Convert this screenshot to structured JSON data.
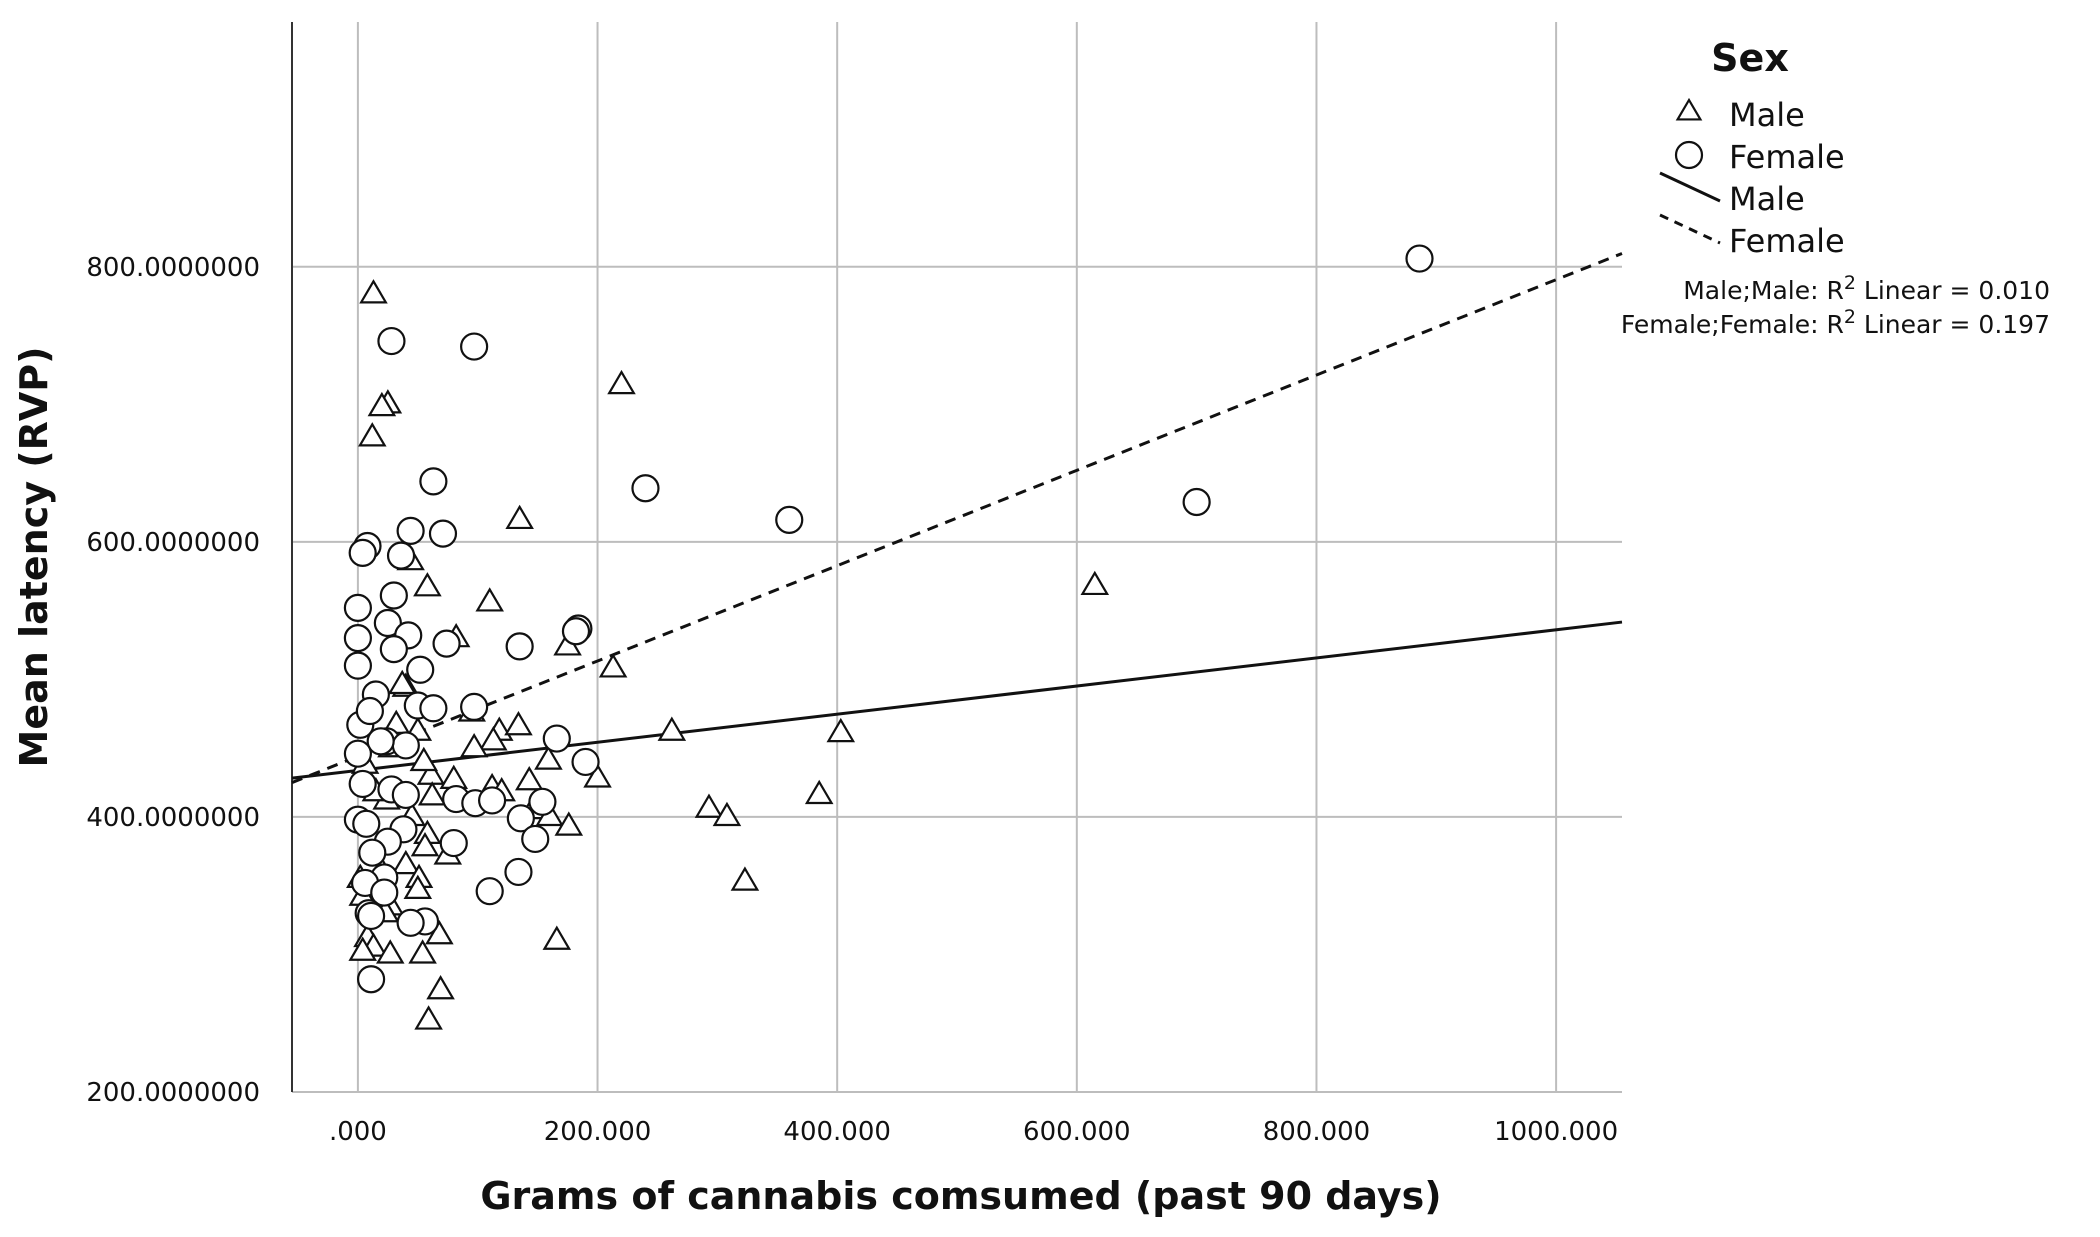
{
  "chart_data": {
    "type": "scatter",
    "title": "",
    "xlabel": "Grams of cannabis comsumed (past 90 days)",
    "ylabel": "Mean latency (RVP)",
    "xlim": [
      -55,
      1055
    ],
    "ylim": [
      200,
      978
    ],
    "x_ticks": [
      0,
      200,
      400,
      600,
      800,
      1000
    ],
    "x_tick_labels": [
      ".000",
      "200.000",
      "400.000",
      "600.000",
      "800.000",
      "1000.000"
    ],
    "y_ticks": [
      200,
      400,
      600,
      800
    ],
    "y_tick_labels": [
      "200.0000000",
      "400.0000000",
      "600.0000000",
      "800.0000000"
    ],
    "grid": true,
    "legend": {
      "title": "Sex",
      "position": "right",
      "entries": [
        {
          "label": "Male",
          "kind": "marker",
          "symbol": "triangle"
        },
        {
          "label": "Female",
          "kind": "marker",
          "symbol": "circle"
        },
        {
          "label": "Male",
          "kind": "line",
          "style": "solid"
        },
        {
          "label": "Female",
          "kind": "line",
          "style": "dashed"
        }
      ]
    },
    "r2_annotations": [
      {
        "prefix": "Male;Male: R",
        "sup": "2",
        "suffix": " Linear = 0.010"
      },
      {
        "prefix": "Female;Female: R",
        "sup": "2",
        "suffix": " Linear = 0.197"
      }
    ],
    "series": [
      {
        "name": "Male",
        "marker": "triangle",
        "points": [
          [
            13,
            780
          ],
          [
            25,
            700
          ],
          [
            20,
            698
          ],
          [
            12,
            676
          ],
          [
            220,
            714
          ],
          [
            135,
            616
          ],
          [
            58,
            567
          ],
          [
            110,
            556
          ],
          [
            44,
            586
          ],
          [
            82,
            530
          ],
          [
            175,
            524
          ],
          [
            213,
            508
          ],
          [
            40,
            494
          ],
          [
            95,
            476
          ],
          [
            118,
            462
          ],
          [
            134,
            466
          ],
          [
            262,
            462
          ],
          [
            403,
            461
          ],
          [
            113,
            455
          ],
          [
            97,
            450
          ],
          [
            159,
            441
          ],
          [
            28,
            450
          ],
          [
            61,
            430
          ],
          [
            55,
            440
          ],
          [
            6,
            438
          ],
          [
            80,
            427
          ],
          [
            143,
            426
          ],
          [
            112,
            421
          ],
          [
            120,
            418
          ],
          [
            200,
            428
          ],
          [
            62,
            415
          ],
          [
            24,
            412
          ],
          [
            146,
            405
          ],
          [
            160,
            400
          ],
          [
            385,
            416
          ],
          [
            293,
            406
          ],
          [
            308,
            400
          ],
          [
            176,
            393
          ],
          [
            45,
            400
          ],
          [
            58,
            387
          ],
          [
            56,
            378
          ],
          [
            75,
            372
          ],
          [
            40,
            365
          ],
          [
            20,
            360
          ],
          [
            51,
            355
          ],
          [
            2,
            355
          ],
          [
            50,
            347
          ],
          [
            323,
            353
          ],
          [
            27,
            335
          ],
          [
            68,
            314
          ],
          [
            8,
            312
          ],
          [
            166,
            310
          ],
          [
            13,
            305
          ],
          [
            4,
            302
          ],
          [
            27,
            300
          ],
          [
            54,
            300
          ],
          [
            69,
            274
          ],
          [
            59,
            252
          ],
          [
            37,
            496
          ],
          [
            32,
            467
          ],
          [
            50,
            462
          ],
          [
            15,
            418
          ],
          [
            4,
            342
          ],
          [
            23,
            330
          ],
          [
            615,
            568
          ]
        ]
      },
      {
        "name": "Female",
        "marker": "circle",
        "points": [
          [
            886,
            806
          ],
          [
            28,
            746
          ],
          [
            97,
            742
          ],
          [
            63,
            644
          ],
          [
            240,
            639
          ],
          [
            360,
            616
          ],
          [
            700,
            629
          ],
          [
            8,
            597
          ],
          [
            4,
            592
          ],
          [
            44,
            608
          ],
          [
            71,
            606
          ],
          [
            36,
            590
          ],
          [
            30,
            561
          ],
          [
            0,
            552
          ],
          [
            25,
            541
          ],
          [
            184,
            537
          ],
          [
            182,
            535
          ],
          [
            0,
            530
          ],
          [
            42,
            532
          ],
          [
            74,
            526
          ],
          [
            135,
            524
          ],
          [
            30,
            522
          ],
          [
            0,
            510
          ],
          [
            52,
            507
          ],
          [
            15,
            489
          ],
          [
            2,
            467
          ],
          [
            97,
            480
          ],
          [
            50,
            481
          ],
          [
            63,
            479
          ],
          [
            10,
            477
          ],
          [
            24,
            455
          ],
          [
            40,
            452
          ],
          [
            19,
            455
          ],
          [
            166,
            457
          ],
          [
            0,
            446
          ],
          [
            190,
            440
          ],
          [
            4,
            424
          ],
          [
            28,
            420
          ],
          [
            40,
            416
          ],
          [
            82,
            413
          ],
          [
            98,
            410
          ],
          [
            112,
            412
          ],
          [
            154,
            411
          ],
          [
            0,
            398
          ],
          [
            7,
            395
          ],
          [
            38,
            391
          ],
          [
            136,
            399
          ],
          [
            148,
            384
          ],
          [
            80,
            381
          ],
          [
            25,
            382
          ],
          [
            12,
            374
          ],
          [
            22,
            356
          ],
          [
            134,
            360
          ],
          [
            6,
            352
          ],
          [
            22,
            345
          ],
          [
            110,
            346
          ],
          [
            56,
            324
          ],
          [
            44,
            323
          ],
          [
            9,
            330
          ],
          [
            11,
            328
          ],
          [
            11,
            282
          ]
        ]
      }
    ],
    "fit_lines": [
      {
        "name": "Male",
        "style": "solid",
        "x": [
          -55,
          1055
        ],
        "y": [
          428.2,
          541.7
        ]
      },
      {
        "name": "Female",
        "style": "dashed",
        "x": [
          -55,
          1055
        ],
        "y": [
          425,
          809.7
        ]
      }
    ]
  }
}
